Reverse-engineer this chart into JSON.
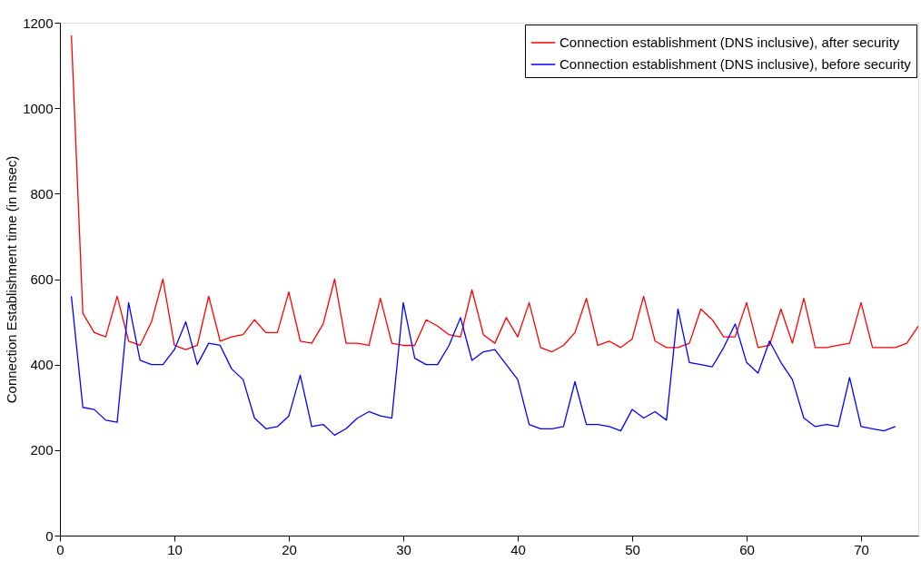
{
  "chart_data": {
    "type": "line",
    "ylabel": "Connection Establishment time (in msec)",
    "xlim": [
      0,
      75
    ],
    "xticks": [
      0,
      10,
      20,
      30,
      40,
      50,
      60,
      70
    ],
    "ylim": [
      0,
      1200
    ],
    "yticks": [
      0,
      200,
      400,
      600,
      800,
      1000,
      1200
    ],
    "grid": false,
    "legend": "top right",
    "marker": "none",
    "line_style": "solid",
    "series": [
      {
        "name": "Connection establishment (DNS inclusive), after security",
        "color": "#ff0000",
        "x": [
          1,
          2,
          3,
          4,
          5,
          6,
          7,
          8,
          9,
          10,
          11,
          12,
          13,
          14,
          15,
          16,
          17,
          18,
          19,
          20,
          21,
          22,
          23,
          24,
          25,
          26,
          27,
          28,
          29,
          30,
          31,
          32,
          33,
          34,
          35,
          36,
          37,
          38,
          39,
          40,
          41,
          42,
          43,
          44,
          45,
          46,
          47,
          48,
          49,
          50,
          51,
          52,
          53,
          54,
          55,
          56,
          57,
          58,
          59,
          60,
          61,
          62,
          63,
          64,
          65,
          66,
          67,
          68,
          69,
          70,
          71,
          72,
          73,
          74,
          75
        ],
        "values": [
          1170,
          520,
          475,
          465,
          560,
          455,
          445,
          500,
          600,
          445,
          435,
          445,
          560,
          455,
          465,
          470,
          505,
          475,
          475,
          570,
          455,
          450,
          495,
          600,
          450,
          450,
          445,
          555,
          450,
          445,
          445,
          505,
          490,
          470,
          465,
          575,
          470,
          450,
          510,
          465,
          545,
          440,
          430,
          445,
          475,
          555,
          445,
          455,
          440,
          460,
          560,
          455,
          440,
          440,
          450,
          530,
          505,
          465,
          465,
          545,
          440,
          445,
          530,
          450,
          555,
          440,
          440,
          445,
          450,
          545,
          440,
          440,
          440,
          450,
          490
        ]
      },
      {
        "name": "Connection establishment (DNS inclusive), before security",
        "color": "#0000ff",
        "x": [
          1,
          2,
          3,
          4,
          5,
          6,
          7,
          8,
          9,
          10,
          11,
          12,
          13,
          14,
          15,
          16,
          17,
          18,
          19,
          20,
          21,
          22,
          23,
          24,
          25,
          26,
          27,
          28,
          29,
          30,
          31,
          32,
          33,
          34,
          35,
          36,
          37,
          38,
          39,
          40,
          41,
          42,
          43,
          44,
          45,
          46,
          47,
          48,
          49,
          50,
          51,
          52,
          53,
          54,
          55,
          56,
          57,
          58,
          59,
          60,
          61,
          62,
          63,
          64,
          65,
          66,
          67,
          68,
          69,
          70,
          71,
          72,
          73
        ],
        "values": [
          560,
          300,
          295,
          270,
          265,
          545,
          410,
          400,
          400,
          435,
          500,
          400,
          450,
          445,
          390,
          365,
          275,
          250,
          255,
          280,
          375,
          255,
          260,
          235,
          250,
          275,
          290,
          280,
          275,
          545,
          415,
          400,
          400,
          445,
          510,
          410,
          430,
          435,
          400,
          365,
          260,
          250,
          250,
          255,
          360,
          260,
          260,
          255,
          245,
          295,
          275,
          290,
          270,
          530,
          405,
          400,
          395,
          440,
          495,
          405,
          380,
          455,
          405,
          365,
          275,
          255,
          260,
          255,
          370,
          255,
          250,
          245,
          255
        ]
      }
    ]
  }
}
